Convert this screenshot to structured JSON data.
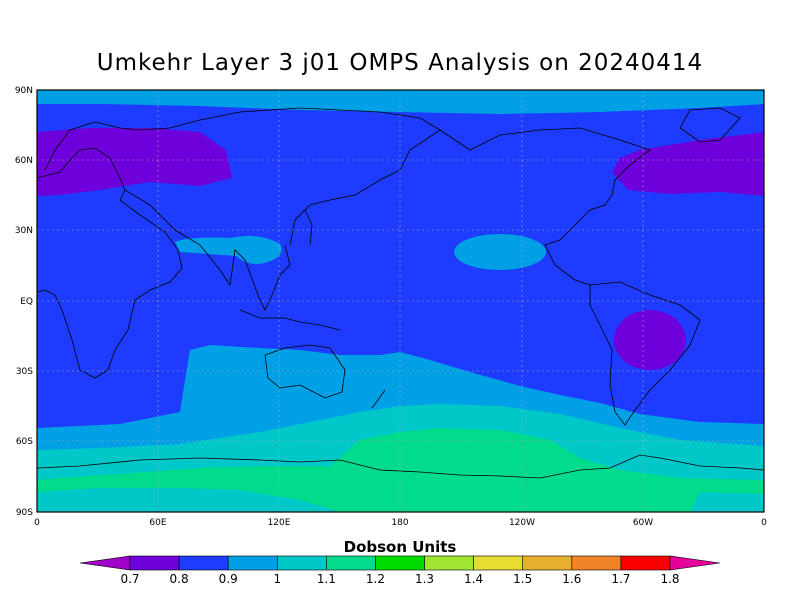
{
  "title": "Umkehr Layer 3 j01 OMPS Analysis on 20240414",
  "map": {
    "lat_labels": [
      "90N",
      "60N",
      "30N",
      "EQ",
      "30S",
      "60S",
      "90S"
    ],
    "lon_labels": [
      "0",
      "60E",
      "120E",
      "180",
      "120W",
      "60W",
      "0"
    ]
  },
  "colorbar": {
    "units_label": "Dobson Units",
    "ticks": [
      "0.7",
      "0.8",
      "0.9",
      "1",
      "1.1",
      "1.2",
      "1.3",
      "1.4",
      "1.5",
      "1.6",
      "1.7",
      "1.8"
    ],
    "colors": [
      "#a000c8",
      "#6e00dc",
      "#1e3cff",
      "#00a0e6",
      "#00c8c8",
      "#00dc8c",
      "#00dc00",
      "#a0e632",
      "#e6dc32",
      "#e6af2d",
      "#f08228",
      "#fa0000",
      "#e6009a"
    ]
  },
  "field_colors": {
    "band_09_1": "#00a0e6",
    "band_1_11": "#00c8c8",
    "band_11_12": "#00dc8c",
    "band_08_09": "#1e3cff",
    "band_07_08": "#6e00dc"
  }
}
